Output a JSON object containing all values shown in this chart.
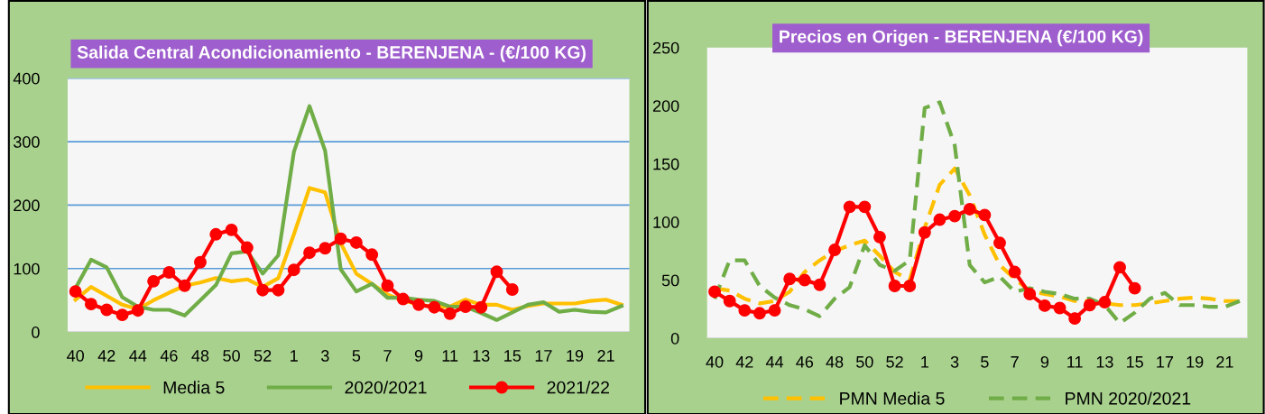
{
  "chart_data": [
    {
      "type": "line",
      "title": "Salida Central Acondicionamiento - BERENJENA - (€/100 KG)",
      "categories": [
        "40",
        null,
        "42",
        null,
        "44",
        null,
        "46",
        null,
        "48",
        null,
        "50",
        null,
        "52",
        null,
        "1",
        null,
        "3",
        null,
        "5",
        null,
        "7",
        null,
        "9",
        null,
        "11",
        null,
        "13",
        null,
        "15",
        null,
        "17",
        null,
        "19",
        null,
        "21",
        null
      ],
      "series": [
        {
          "name": "Media 5",
          "color": "#ffc000",
          "line_style": "solid",
          "marker": "none",
          "values": [
            51,
            71,
            57,
            43,
            36,
            50,
            62,
            73,
            78,
            85,
            80,
            83,
            71,
            85,
            154,
            227,
            220,
            140,
            92,
            76,
            59,
            50,
            43,
            40,
            40,
            51,
            43,
            43,
            35,
            41,
            45,
            45,
            45,
            49,
            51,
            43
          ]
        },
        {
          "name": "2020/2021",
          "color": "#70ad47",
          "line_style": "solid",
          "marker": "none",
          "values": [
            69,
            114,
            102,
            55,
            40,
            35,
            35,
            26,
            50,
            74,
            124,
            127,
            92,
            121,
            284,
            356,
            286,
            99,
            64,
            76,
            54,
            54,
            51,
            49,
            40,
            40,
            30,
            19,
            31,
            43,
            47,
            32,
            35,
            32,
            31,
            41
          ]
        },
        {
          "name": "2021/22",
          "color": "#ff0000",
          "line_style": "solid",
          "marker": "circle",
          "values": [
            64,
            44,
            35,
            27,
            34,
            80,
            94,
            73,
            110,
            154,
            161,
            133,
            66,
            66,
            98,
            125,
            132,
            147,
            141,
            122,
            73,
            52,
            43,
            39,
            29,
            40,
            39,
            95,
            67,
            null,
            null,
            null,
            null,
            null,
            null,
            null
          ]
        }
      ],
      "ylim": [
        0,
        400
      ],
      "yticks": [
        0,
        100,
        200,
        300,
        400
      ],
      "grid": "y",
      "legend": "bottom"
    },
    {
      "type": "line",
      "title": "Precios en Origen - BERENJENA (€/100 KG)",
      "categories": [
        "40",
        null,
        "42",
        null,
        "44",
        null,
        "46",
        null,
        "48",
        null,
        "50",
        null,
        "52",
        null,
        "1",
        null,
        "3",
        null,
        "5",
        null,
        "7",
        null,
        "9",
        null,
        "11",
        null,
        "13",
        null,
        "15",
        null,
        "17",
        null,
        "19",
        null,
        "21",
        null
      ],
      "series": [
        {
          "name": "PMN Media 5",
          "color": "#ffc000",
          "line_style": "dashed",
          "marker": "none",
          "values": [
            43,
            41,
            34,
            30,
            32,
            40,
            57,
            67,
            75,
            80,
            84,
            71,
            57,
            50,
            95,
            132,
            146,
            123,
            89,
            63,
            51,
            41,
            38,
            36,
            32,
            32,
            30,
            28.5,
            28.5,
            30,
            32,
            34,
            35,
            34,
            32,
            32
          ]
        },
        {
          "name": "PMN 2020/2021",
          "color": "#70ad47",
          "line_style": "dashed",
          "marker": "none",
          "values": [
            34,
            67,
            67,
            45,
            35,
            28.5,
            25,
            19,
            34,
            44,
            80,
            63,
            58,
            67,
            198,
            203,
            166,
            63,
            48,
            53,
            40,
            43,
            40,
            38,
            34,
            34,
            28.5,
            13,
            22,
            34,
            39,
            28.5,
            28.5,
            27,
            27,
            32
          ]
        },
        {
          "color": "#ff0000",
          "line_style": "solid",
          "marker": "circle",
          "values": [
            40,
            32,
            24,
            21.5,
            24,
            51,
            50,
            46,
            76,
            113,
            113,
            87,
            45,
            45,
            91,
            102,
            105,
            111,
            106,
            82,
            57,
            38,
            28,
            26,
            17,
            28.5,
            31,
            61,
            43,
            null,
            null,
            null,
            null,
            null,
            null,
            null
          ]
        }
      ],
      "ylim": [
        0,
        250
      ],
      "yticks": [
        0,
        50,
        100,
        150,
        200,
        250
      ],
      "legend": "bottom"
    }
  ]
}
